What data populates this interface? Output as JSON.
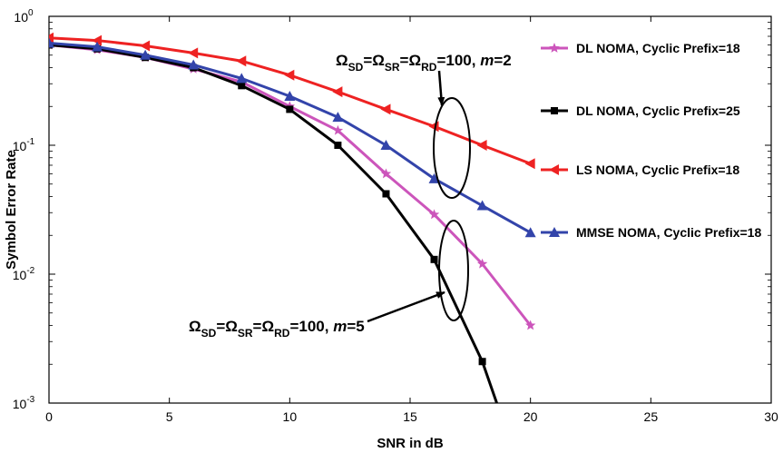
{
  "chart_data": {
    "type": "line",
    "title": "",
    "xlabel": "SNR in dB",
    "ylabel": "Symbol Error Rate",
    "xlim": [
      0,
      30
    ],
    "ylim": [
      0.001,
      1
    ],
    "yscale": "log",
    "xticks": [
      "0",
      "5",
      "10",
      "15",
      "20",
      "25",
      "30"
    ],
    "yticks": [
      {
        "base": "10",
        "exp": "0"
      },
      {
        "base": "10",
        "exp": "-1"
      },
      {
        "base": "10",
        "exp": "-2"
      },
      {
        "base": "10",
        "exp": "-3"
      }
    ],
    "grid": false,
    "legend_position": "right",
    "series": [
      {
        "name": "DL NOMA, Cyclic Prefix=18",
        "color": "#cc55bb",
        "marker": "star",
        "x": [
          0,
          2,
          4,
          6,
          8,
          10,
          12,
          14,
          16,
          18,
          20
        ],
        "y": [
          0.6,
          0.55,
          0.48,
          0.39,
          0.31,
          0.2,
          0.13,
          0.06,
          0.029,
          0.012,
          0.004
        ]
      },
      {
        "name": "DL NOMA, Cyclic Prefix=25",
        "color": "#000000",
        "marker": "square",
        "x": [
          0,
          2,
          4,
          6,
          8,
          10,
          12,
          14,
          16,
          18,
          18.6
        ],
        "y": [
          0.6,
          0.56,
          0.48,
          0.4,
          0.29,
          0.19,
          0.1,
          0.042,
          0.013,
          0.0021,
          0.001
        ]
      },
      {
        "name": "LS NOMA, Cyclic Prefix=18",
        "color": "#ee2222",
        "marker": "triangle-left",
        "x": [
          0,
          2,
          4,
          6,
          8,
          10,
          12,
          14,
          16,
          18,
          20
        ],
        "y": [
          0.68,
          0.65,
          0.59,
          0.52,
          0.45,
          0.35,
          0.26,
          0.19,
          0.14,
          0.1,
          0.072
        ]
      },
      {
        "name": "MMSE NOMA, Cyclic Prefix=18",
        "color": "#3344aa",
        "marker": "triangle-up",
        "x": [
          0,
          2,
          4,
          6,
          8,
          10,
          12,
          14,
          16,
          18,
          20
        ],
        "y": [
          0.62,
          0.58,
          0.5,
          0.42,
          0.33,
          0.24,
          0.165,
          0.1,
          0.055,
          0.034,
          0.021
        ]
      }
    ],
    "annotations": [
      {
        "parts": [
          {
            "t": "Ω"
          },
          {
            "t": "SD",
            "sub": true
          },
          {
            "t": "=Ω"
          },
          {
            "t": "SR",
            "sub": true
          },
          {
            "t": "=Ω"
          },
          {
            "t": "RD",
            "sub": true
          },
          {
            "t": "=100, "
          },
          {
            "t": "m",
            "italic": true
          },
          {
            "t": "=2"
          }
        ]
      },
      {
        "parts": [
          {
            "t": "Ω"
          },
          {
            "t": "SD",
            "sub": true
          },
          {
            "t": "=Ω"
          },
          {
            "t": "SR",
            "sub": true
          },
          {
            "t": "=Ω"
          },
          {
            "t": "RD",
            "sub": true
          },
          {
            "t": "=100, "
          },
          {
            "t": "m",
            "italic": true
          },
          {
            "t": "=5"
          }
        ]
      }
    ]
  }
}
